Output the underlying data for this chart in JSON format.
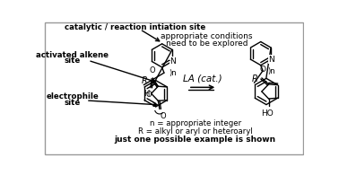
{
  "background_color": "#ffffff",
  "border_color": "#999999",
  "fig_width": 3.78,
  "fig_height": 1.95,
  "dpi": 100,
  "labels": {
    "cat_site": "catalytic / reaction intiation site",
    "alkene_site_1": "activated alkene",
    "alkene_site_2": "site",
    "electrophile_1": "electrophile",
    "electrophile_2": "site",
    "cond1": "appropriate conditions",
    "cond2": "need to be explored",
    "la_cat": "LA (cat.)",
    "n_eq": "n = appropriate integer",
    "r_eq": "R = alkyl or aryl or heteroaryl",
    "example": "just one possible example is shown"
  },
  "colors": {
    "black": "#000000",
    "border": "#999999",
    "bg": "#ffffff"
  }
}
